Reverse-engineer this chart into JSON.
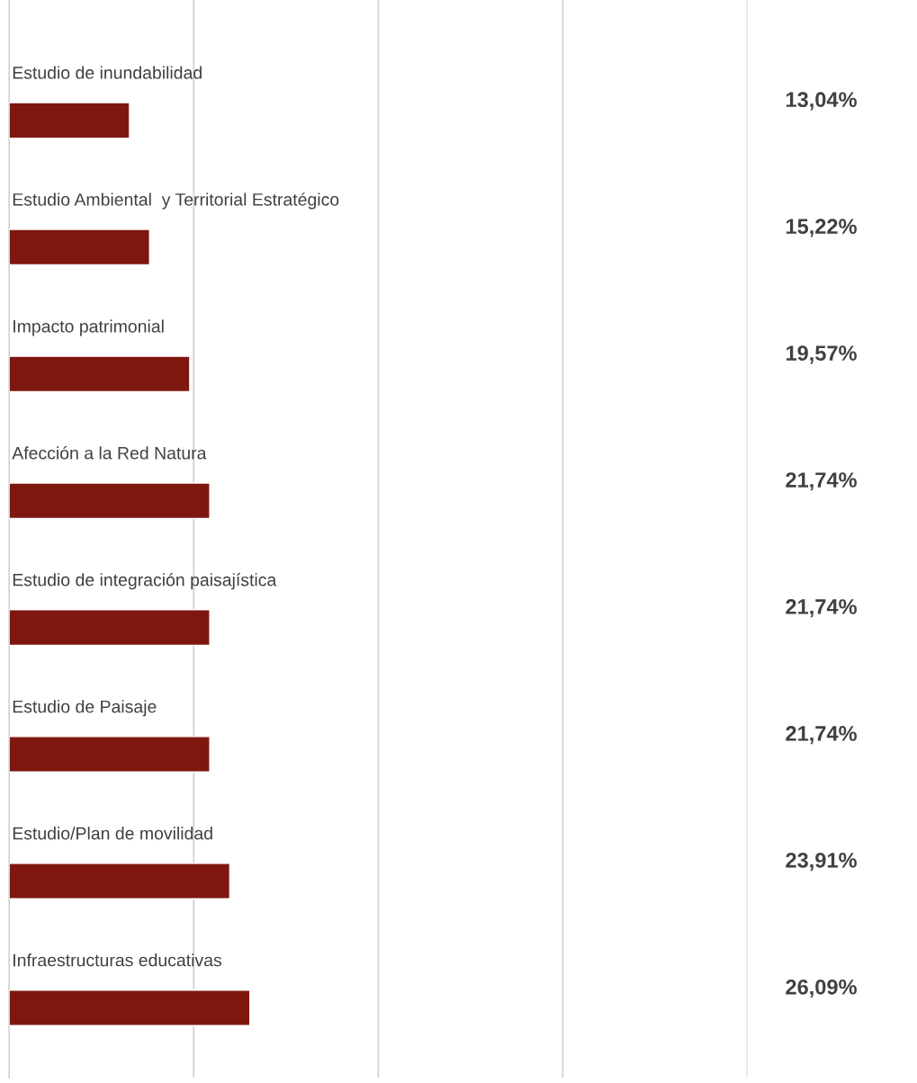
{
  "chart_data": {
    "type": "bar",
    "orientation": "horizontal",
    "categories": [
      "Estudio de inundabilidad",
      "Estudio Ambiental  y Territorial Estratégico",
      "Impacto patrimonial",
      "Afección a la Red Natura",
      "Estudio de integración paisajística",
      "Estudio de Paisaje",
      "Estudio/Plan de movilidad",
      "Infraestructuras educativas"
    ],
    "values": [
      13.04,
      15.22,
      19.57,
      21.74,
      21.74,
      21.74,
      23.91,
      26.09
    ],
    "value_labels": [
      "13,04%",
      "15,22%",
      "19,57%",
      "21,74%",
      "21,74%",
      "21,74%",
      "23,91%",
      "26,09%"
    ],
    "color": "#7e1710",
    "ref_lines": [
      {
        "axis": "x",
        "value": 20,
        "color": "#d0d0d0"
      },
      {
        "axis": "x",
        "value": 40,
        "color": "#d0d0d0"
      },
      {
        "axis": "x",
        "value": 60,
        "color": "#d0d0d0"
      },
      {
        "axis": "x",
        "value": 80,
        "color": "#d0d0d0"
      }
    ],
    "legend": false
  }
}
